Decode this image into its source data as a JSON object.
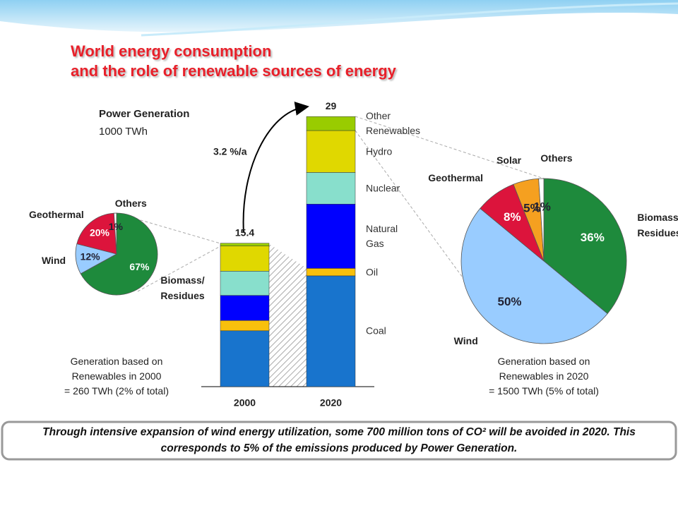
{
  "title_lines": [
    "World energy consumption",
    "and the role of renewable sources of energy"
  ],
  "chart_data": [
    {
      "type": "stacked-bar",
      "title": "Power Generation",
      "subtitle": "1000 TWh",
      "annotation": "3.2 %/a",
      "categories": [
        "2000",
        "2020"
      ],
      "totals": [
        15.4,
        29
      ],
      "series": [
        {
          "name": "Coal",
          "color": "#1874cd",
          "values": [
            6.0,
            11.9
          ]
        },
        {
          "name": "Oil",
          "color": "#f8c00c",
          "values": [
            1.1,
            0.8
          ]
        },
        {
          "name": "Natural Gas",
          "color": "#0000ff",
          "values": [
            2.7,
            6.9
          ]
        },
        {
          "name": "Nuclear",
          "color": "#88dfcc",
          "values": [
            2.6,
            3.4
          ]
        },
        {
          "name": "Hydro",
          "color": "#e0d800",
          "values": [
            2.7,
            4.5
          ]
        },
        {
          "name": "Other Renewables",
          "color": "#99cc00",
          "values": [
            0.3,
            1.5
          ]
        }
      ]
    },
    {
      "type": "pie",
      "categories": [
        "Biomass/ Residues",
        "Wind",
        "Geothermal",
        "Others"
      ],
      "values": [
        67,
        12,
        20,
        1
      ],
      "value_labels": [
        "67%",
        "12%",
        "20%",
        "1%"
      ],
      "colors": [
        "#1e8a3c",
        "#99ccff",
        "#dc143c",
        "#ffffff"
      ],
      "caption": [
        "Generation based on",
        "Renewables in 2000",
        "= 260 TWh (2% of total)"
      ]
    },
    {
      "type": "pie",
      "categories": [
        "Biomass/ Residues",
        "Wind",
        "Geothermal",
        "Solar",
        "Others"
      ],
      "values": [
        36,
        50,
        8,
        5,
        1
      ],
      "value_labels": [
        "36%",
        "50%",
        "8%",
        "5%",
        "1%"
      ],
      "colors": [
        "#1e8a3c",
        "#99ccff",
        "#dc143c",
        "#f5a020",
        "#ffffff"
      ],
      "caption": [
        "Generation based on",
        "Renewables in 2020",
        "= 1500 TWh (5% of total)"
      ]
    }
  ],
  "footer": "Through intensive expansion of wind energy utilization, some 700 million tons of CO² will be avoided in 2020. This corresponds to 5% of the emissions produced by Power Generation."
}
